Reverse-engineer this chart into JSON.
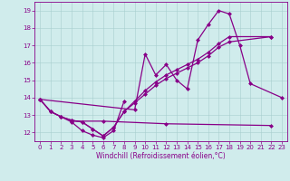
{
  "xlabel": "Windchill (Refroidissement éolien,°C)",
  "color": "#880088",
  "bg_color": "#d0ecec",
  "ylim": [
    11.5,
    19.5
  ],
  "xlim": [
    -0.5,
    23.5
  ],
  "yticks": [
    12,
    13,
    14,
    15,
    16,
    17,
    18,
    19
  ],
  "xticks": [
    0,
    1,
    2,
    3,
    4,
    5,
    6,
    7,
    8,
    9,
    10,
    11,
    12,
    13,
    14,
    15,
    16,
    17,
    18,
    19,
    20,
    21,
    22,
    23
  ],
  "line1": [
    [
      0,
      13.9
    ],
    [
      1,
      13.2
    ],
    [
      2,
      12.9
    ],
    [
      3,
      12.6
    ],
    [
      4,
      12.1
    ],
    [
      5,
      11.85
    ],
    [
      6,
      11.7
    ],
    [
      7,
      12.1
    ],
    [
      8,
      13.8
    ]
  ],
  "line2": [
    [
      3,
      12.65
    ],
    [
      6,
      12.65
    ],
    [
      12,
      12.5
    ],
    [
      22,
      12.4
    ]
  ],
  "line3": [
    [
      0,
      13.9
    ],
    [
      9,
      13.3
    ],
    [
      10,
      16.5
    ],
    [
      11,
      15.3
    ],
    [
      12,
      15.9
    ],
    [
      13,
      15.0
    ],
    [
      14,
      14.5
    ],
    [
      15,
      17.3
    ],
    [
      16,
      18.2
    ],
    [
      17,
      19.0
    ],
    [
      18,
      18.8
    ],
    [
      19,
      17.0
    ],
    [
      20,
      14.8
    ],
    [
      23,
      14.0
    ]
  ],
  "line4": [
    [
      0,
      13.9
    ],
    [
      1,
      13.2
    ],
    [
      2,
      12.9
    ],
    [
      3,
      12.7
    ],
    [
      4,
      12.6
    ],
    [
      5,
      12.2
    ],
    [
      6,
      11.8
    ],
    [
      7,
      12.3
    ],
    [
      8,
      13.2
    ],
    [
      9,
      13.7
    ],
    [
      10,
      14.2
    ],
    [
      11,
      14.7
    ],
    [
      12,
      15.1
    ],
    [
      13,
      15.4
    ],
    [
      14,
      15.7
    ],
    [
      15,
      16.0
    ],
    [
      16,
      16.4
    ],
    [
      17,
      16.9
    ],
    [
      18,
      17.2
    ],
    [
      22,
      17.5
    ]
  ],
  "line5": [
    [
      0,
      13.9
    ],
    [
      1,
      13.2
    ],
    [
      2,
      12.9
    ],
    [
      3,
      12.7
    ],
    [
      4,
      12.6
    ],
    [
      5,
      12.2
    ],
    [
      6,
      11.8
    ],
    [
      7,
      12.3
    ],
    [
      8,
      13.2
    ],
    [
      9,
      13.8
    ],
    [
      10,
      14.4
    ],
    [
      11,
      14.9
    ],
    [
      12,
      15.3
    ],
    [
      13,
      15.6
    ],
    [
      14,
      15.9
    ],
    [
      15,
      16.2
    ],
    [
      16,
      16.6
    ],
    [
      17,
      17.1
    ],
    [
      18,
      17.5
    ],
    [
      22,
      17.5
    ]
  ]
}
